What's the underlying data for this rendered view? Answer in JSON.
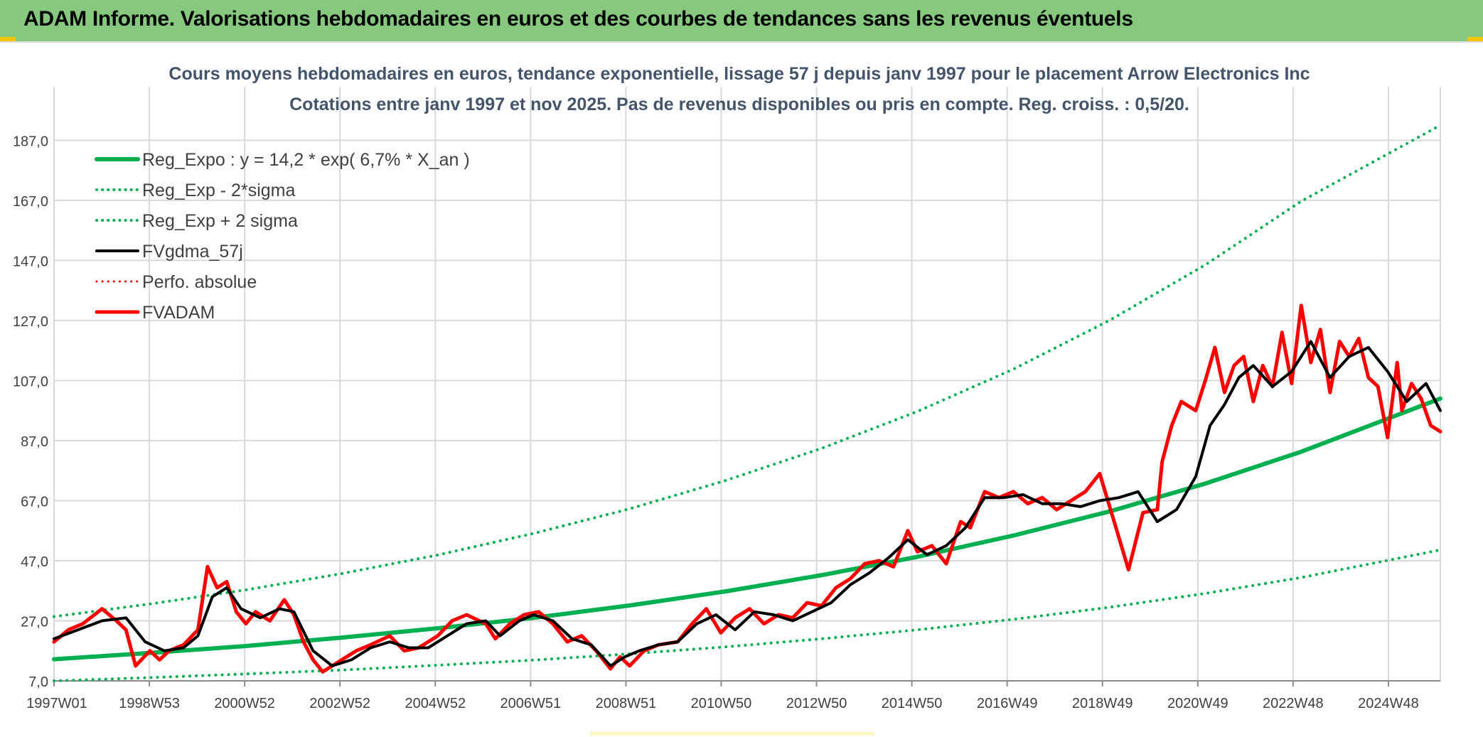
{
  "banner": {
    "title": "ADAM Informe. Valorisations hebdomadaires en euros et des courbes de tendances sans les revenus éventuels"
  },
  "colors": {
    "banner_bg": "#86c97e",
    "green": "#00b050",
    "black": "#000000",
    "red": "#ff0000",
    "grid": "#d9d9d9",
    "text": "#404040"
  },
  "chart_data": {
    "type": "line",
    "title": "Cours moyens hebdomadaires en euros, tendance exponentielle, lissage 57 j depuis janv 1997 pour le placement Arrow Electronics Inc",
    "subtitle": "Cotations entre janv 1997 et nov 2025. Pas de revenus disponibles ou pris en compte. Reg. croiss. : 0,5/20.",
    "xlabel": "",
    "ylabel": "",
    "ylim": [
      7,
      193
    ],
    "xlim": [
      1997.0,
      2025.9
    ],
    "y_ticks": [
      "7,0",
      "27,0",
      "47,0",
      "67,0",
      "87,0",
      "107,0",
      "127,0",
      "147,0",
      "167,0",
      "187,0"
    ],
    "x_ticks": [
      "1997W01",
      "1998W53",
      "2000W52",
      "2002W52",
      "2004W52",
      "2006W51",
      "2008W51",
      "2010W50",
      "2012W50",
      "2014W50",
      "2016W49",
      "2018W49",
      "2020W49",
      "2022W48",
      "2024W48"
    ],
    "grid": true,
    "legend_position": "top-left",
    "legend": [
      {
        "label": "Reg_Expo : y = 14,2 * exp( 6,7% *  X_an )",
        "color": "#00b050",
        "style": "solid",
        "width": 6
      },
      {
        "label": "Reg_Exp - 2*sigma",
        "color": "#00b050",
        "style": "dotted",
        "width": 4
      },
      {
        "label": "Reg_Exp + 2 sigma",
        "color": "#00b050",
        "style": "dotted",
        "width": 4
      },
      {
        "label": "FVgdma_57j",
        "color": "#000000",
        "style": "solid",
        "width": 4
      },
      {
        "label": "Perfo. absolue",
        "color": "#ff0000",
        "style": "dotted",
        "width": 3
      },
      {
        "label": "FVADAM",
        "color": "#ff0000",
        "style": "solid",
        "width": 5
      }
    ],
    "series": [
      {
        "name": "Reg_Expo : y = 14,2 * exp( 6,7% *  X_an )",
        "x": [
          1997.0,
          1999.0,
          2001.0,
          2003.0,
          2005.0,
          2007.0,
          2009.0,
          2011.0,
          2013.0,
          2015.0,
          2017.0,
          2019.0,
          2021.0,
          2023.0,
          2025.9
        ],
        "values": [
          14.2,
          16.3,
          18.6,
          21.4,
          24.5,
          28.0,
          32.1,
          36.8,
          42.2,
          48.3,
          55.4,
          63.4,
          72.7,
          83.3,
          101.0
        ]
      },
      {
        "name": "Reg_Exp - 2*sigma",
        "x": [
          1997.0,
          1999.0,
          2001.0,
          2003.0,
          2005.0,
          2007.0,
          2009.0,
          2011.0,
          2013.0,
          2015.0,
          2017.0,
          2019.0,
          2021.0,
          2023.0,
          2025.9
        ],
        "values": [
          7.0,
          8.1,
          9.3,
          10.6,
          12.2,
          13.9,
          16.0,
          18.3,
          21.0,
          24.0,
          27.5,
          31.5,
          36.1,
          41.4,
          50.6
        ]
      },
      {
        "name": "Reg_Exp + 2 sigma",
        "x": [
          1997.0,
          1999.0,
          2001.0,
          2003.0,
          2005.0,
          2007.0,
          2009.0,
          2011.0,
          2013.0,
          2015.0,
          2017.0,
          2019.0,
          2021.0,
          2023.0,
          2025.9
        ],
        "values": [
          28.4,
          32.6,
          37.3,
          42.7,
          48.9,
          56.1,
          64.3,
          73.7,
          84.4,
          96.7,
          110.8,
          127.0,
          145.5,
          166.7,
          192.0
        ]
      },
      {
        "name": "FVgdma_57j",
        "x": [
          1997.0,
          1997.5,
          1998.0,
          1998.5,
          1998.9,
          1999.3,
          1999.7,
          2000.0,
          2000.3,
          2000.6,
          2000.9,
          2001.3,
          2001.7,
          2002.0,
          2002.4,
          2002.8,
          2003.2,
          2003.6,
          2004.0,
          2004.4,
          2004.8,
          2005.2,
          2005.6,
          2006.0,
          2006.3,
          2006.7,
          2007.0,
          2007.4,
          2007.8,
          2008.2,
          2008.6,
          2008.9,
          2009.2,
          2009.6,
          2010.0,
          2010.4,
          2010.8,
          2011.2,
          2011.6,
          2012.0,
          2012.4,
          2012.8,
          2013.2,
          2013.6,
          2014.0,
          2014.4,
          2014.8,
          2015.2,
          2015.6,
          2016.0,
          2016.4,
          2016.8,
          2017.2,
          2017.6,
          2018.0,
          2018.4,
          2018.8,
          2019.2,
          2019.6,
          2020.0,
          2020.4,
          2020.8,
          2021.1,
          2021.4,
          2021.7,
          2022.0,
          2022.4,
          2022.8,
          2023.2,
          2023.6,
          2024.0,
          2024.4,
          2024.8,
          2025.2,
          2025.6,
          2025.9
        ],
        "values": [
          21.0,
          24.0,
          27.0,
          28.0,
          20.0,
          17.0,
          18.0,
          22.0,
          35.0,
          38.0,
          31.0,
          28.0,
          31.0,
          30.0,
          17.0,
          12.0,
          14.0,
          18.0,
          20.0,
          18.0,
          18.0,
          22.0,
          26.0,
          27.0,
          22.0,
          27.0,
          29.0,
          27.0,
          21.0,
          19.0,
          12.0,
          15.0,
          17.0,
          19.0,
          20.0,
          26.0,
          29.0,
          24.0,
          30.0,
          29.0,
          27.0,
          30.0,
          33.0,
          39.0,
          43.0,
          48.0,
          54.0,
          49.0,
          52.0,
          58.0,
          68.0,
          68.0,
          69.0,
          66.0,
          66.0,
          65.0,
          67.0,
          68.0,
          70.0,
          60.0,
          64.0,
          75.0,
          92.0,
          99.0,
          108.0,
          112.0,
          105.0,
          110.0,
          120.0,
          108.0,
          115.0,
          118.0,
          110.0,
          100.0,
          106.0,
          97.0
        ]
      },
      {
        "name": "FVADAM",
        "x": [
          1997.0,
          1997.3,
          1997.6,
          1998.0,
          1998.3,
          1998.5,
          1998.7,
          1999.0,
          1999.2,
          1999.4,
          1999.7,
          2000.0,
          2000.2,
          2000.4,
          2000.6,
          2000.8,
          2001.0,
          2001.2,
          2001.5,
          2001.8,
          2002.0,
          2002.2,
          2002.4,
          2002.6,
          2002.8,
          2003.0,
          2003.3,
          2003.6,
          2004.0,
          2004.3,
          2004.6,
          2005.0,
          2005.3,
          2005.6,
          2006.0,
          2006.2,
          2006.5,
          2006.8,
          2007.1,
          2007.4,
          2007.7,
          2008.0,
          2008.3,
          2008.6,
          2008.8,
          2009.0,
          2009.3,
          2009.6,
          2010.0,
          2010.3,
          2010.6,
          2010.9,
          2011.2,
          2011.5,
          2011.8,
          2012.1,
          2012.4,
          2012.7,
          2013.0,
          2013.3,
          2013.6,
          2013.9,
          2014.2,
          2014.5,
          2014.8,
          2015.0,
          2015.3,
          2015.6,
          2015.9,
          2016.1,
          2016.4,
          2016.7,
          2017.0,
          2017.3,
          2017.6,
          2017.9,
          2018.2,
          2018.5,
          2018.8,
          2019.1,
          2019.4,
          2019.7,
          2020.0,
          2020.1,
          2020.3,
          2020.5,
          2020.8,
          2021.0,
          2021.2,
          2021.4,
          2021.6,
          2021.8,
          2022.0,
          2022.2,
          2022.4,
          2022.6,
          2022.8,
          2023.0,
          2023.2,
          2023.4,
          2023.6,
          2023.8,
          2024.0,
          2024.2,
          2024.4,
          2024.6,
          2024.8,
          2025.0,
          2025.1,
          2025.3,
          2025.5,
          2025.7,
          2025.9
        ],
        "values": [
          20.0,
          24.0,
          26.0,
          31.0,
          27.0,
          24.0,
          12.0,
          17.0,
          14.0,
          17.0,
          19.0,
          24.0,
          45.0,
          38.0,
          40.0,
          30.0,
          26.0,
          30.0,
          27.0,
          34.0,
          29.0,
          20.0,
          14.0,
          10.0,
          12.0,
          14.0,
          17.0,
          19.0,
          22.0,
          17.0,
          18.0,
          22.0,
          27.0,
          29.0,
          26.0,
          21.0,
          26.0,
          29.0,
          30.0,
          26.0,
          20.0,
          22.0,
          17.0,
          11.0,
          15.0,
          12.0,
          17.0,
          19.0,
          20.0,
          26.0,
          31.0,
          23.0,
          28.0,
          31.0,
          26.0,
          29.0,
          28.0,
          33.0,
          32.0,
          38.0,
          41.0,
          46.0,
          47.0,
          45.0,
          57.0,
          50.0,
          52.0,
          46.0,
          60.0,
          58.0,
          70.0,
          68.0,
          70.0,
          66.0,
          68.0,
          64.0,
          67.0,
          70.0,
          76.0,
          60.0,
          44.0,
          63.0,
          64.0,
          80.0,
          92.0,
          100.0,
          97.0,
          107.0,
          118.0,
          103.0,
          112.0,
          115.0,
          100.0,
          112.0,
          105.0,
          123.0,
          106.0,
          132.0,
          113.0,
          124.0,
          103.0,
          120.0,
          115.0,
          121.0,
          108.0,
          105.0,
          88.0,
          113.0,
          97.0,
          106.0,
          101.0,
          92.0,
          90.0
        ]
      }
    ]
  }
}
